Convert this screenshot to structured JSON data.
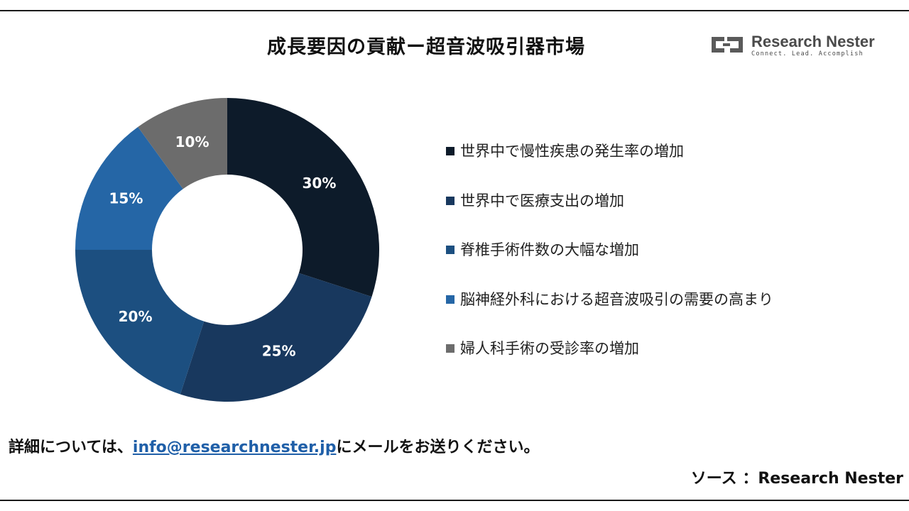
{
  "header": {
    "title": "成長要因の貢献ー超音波吸引器市場"
  },
  "logo": {
    "name": "Research Nester",
    "tagline": "Connect. Lead. Accomplish",
    "icon": "research-nester-logo-icon"
  },
  "chart_data": {
    "type": "pie",
    "donut": true,
    "title": "成長要因の貢献ー超音波吸引器市場",
    "legend_position": "right",
    "slices": [
      {
        "label": "世界中で慢性疾患の発生率の増加",
        "value": 30,
        "display": "30%",
        "color": "#0d1b2a"
      },
      {
        "label": "世界中で医療支出の増加",
        "value": 25,
        "display": "25%",
        "color": "#18385e"
      },
      {
        "label": "脊椎手術件数の大幅な増加",
        "value": 20,
        "display": "20%",
        "color": "#1c4f80"
      },
      {
        "label": "脳神経外科における超音波吸引の需要の高まり",
        "value": 15,
        "display": "15%",
        "color": "#2566a6"
      },
      {
        "label": "婦人科手術の受診率の増加",
        "value": 10,
        "display": "10%",
        "color": "#6c6c6c"
      }
    ]
  },
  "footer": {
    "note_prefix": "詳細については、",
    "email": "info@researchnester.jp",
    "note_suffix": "にメールをお送りください。",
    "source": "ソース ：Research Nester"
  }
}
